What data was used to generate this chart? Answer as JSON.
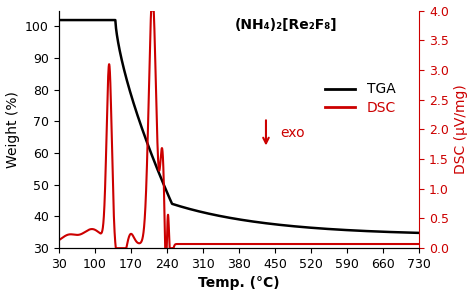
{
  "title": "(NH₄)₂[Re₂F₈]",
  "xlabel": "Temp. (°C)",
  "ylabel_left": "Weight (%)",
  "ylabel_right": "DSC (μV/mg)",
  "xlim": [
    30,
    730
  ],
  "ylim_left": [
    30,
    105
  ],
  "ylim_right": [
    0,
    4
  ],
  "xticks": [
    30,
    100,
    170,
    240,
    310,
    380,
    450,
    520,
    590,
    660,
    730
  ],
  "yticks_left": [
    30,
    40,
    50,
    60,
    70,
    80,
    90,
    100
  ],
  "yticks_right": [
    0,
    0.5,
    1.0,
    1.5,
    2.0,
    2.5,
    3.0,
    3.5,
    4.0
  ],
  "tga_color": "#000000",
  "dsc_color": "#cc0000",
  "legend_fontsize": 10,
  "title_fontsize": 10,
  "axis_fontsize": 10,
  "tick_fontsize": 9,
  "exo_arrow_color": "#cc0000",
  "background_color": "#ffffff"
}
